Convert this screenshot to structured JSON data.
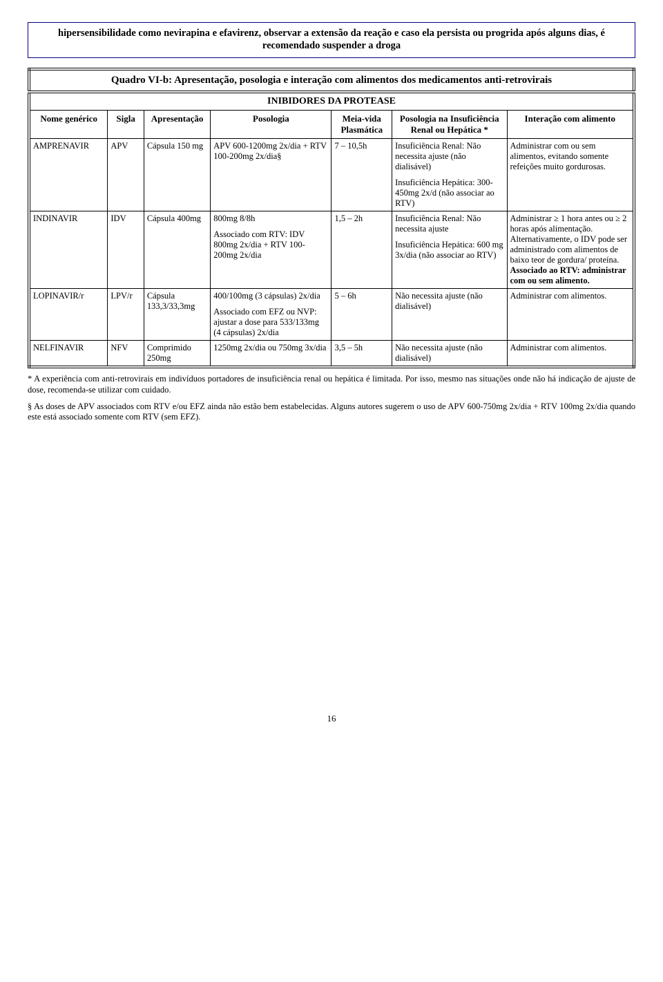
{
  "note": "hipersensibilidade como nevirapina e efavirenz, observar a extensão da reação e caso ela persista ou progrida após alguns dias, é recomendado suspender a droga",
  "table": {
    "title": "Quadro VI-b: Apresentação, posologia e interação com alimentos dos medicamentos anti-retrovirais",
    "subtitle": "INIBIDORES DA PROTEASE",
    "headers": {
      "c1": "Nome genérico",
      "c2": "Sigla",
      "c3": "Apresentação",
      "c4": "Posologia",
      "c5": "Meia-vida Plasmática",
      "c6": "Posologia na Insuficiência Renal ou Hepática *",
      "c7": "Interação com alimento"
    },
    "rows": [
      {
        "nome": "AMPRENAVIR",
        "sigla": "APV",
        "apres": "Cápsula 150 mg",
        "posol": "APV 600-1200mg 2x/dia + RTV 100-200mg 2x/dia§",
        "meia": "7 – 10,5h",
        "insuf": "Insuficiência Renal: Não necessita ajuste (não dialisável)\n\nInsuficiência Hepática: 300-450mg 2x/d (não associar ao RTV)",
        "inter": "Administrar com ou sem alimentos, evitando somente refeições muito gordurosas."
      },
      {
        "nome": "INDINAVIR",
        "sigla": "IDV",
        "apres": "Cápsula 400mg",
        "posol": "800mg 8/8h\n\nAssociado com RTV: IDV 800mg 2x/dia + RTV 100-200mg 2x/dia",
        "meia": "1,5 – 2h",
        "insuf": "Insuficiência Renal: Não necessita ajuste\n\nInsuficiência Hepática: 600 mg 3x/dia (não associar ao RTV)",
        "inter": "Administrar ≥ 1 hora antes ou ≥ 2 horas após alimentação. Alternativamente, o IDV pode ser administrado com alimentos de baixo teor de gordura/ proteína.\nAssociado ao RTV: administrar com ou sem alimento.",
        "inter_bold_tail": "Associado ao RTV: administrar com ou sem alimento."
      },
      {
        "nome": "LOPINAVIR/r",
        "sigla": "LPV/r",
        "apres": "Cápsula 133,3/33,3mg",
        "posol": "400/100mg (3 cápsulas) 2x/dia\n\nAssociado com EFZ ou NVP: ajustar a dose para 533/133mg (4 cápsulas) 2x/dia",
        "meia": "5 – 6h",
        "insuf": "Não necessita ajuste (não dialisável)",
        "inter": "Administrar com alimentos."
      },
      {
        "nome": "NELFINAVIR",
        "sigla": "NFV",
        "apres": "Comprimido 250mg",
        "posol": "1250mg 2x/dia ou 750mg 3x/dia",
        "meia": "3,5 – 5h",
        "insuf": "Não necessita ajuste (não dialisável)",
        "inter": "Administrar com alimentos."
      }
    ]
  },
  "footnotes": {
    "f1": "* A experiência com anti-retrovirais em indivíduos portadores de insuficiência renal ou hepática é limitada. Por isso, mesmo nas situações onde não há indicação de ajuste de dose, recomenda-se utilizar com cuidado.",
    "f2": "§ As doses de APV associados com RTV e/ou EFZ ainda não estão bem estabelecidas. Alguns autores sugerem o uso de APV 600-750mg 2x/dia + RTV 100mg 2x/dia quando este está associado somente com RTV (sem EFZ)."
  },
  "page": "16",
  "colors": {
    "border_box": "#000080",
    "text": "#000000",
    "bg": "#ffffff"
  },
  "col_widths_pct": [
    13,
    6,
    11,
    20,
    10,
    19,
    21
  ]
}
